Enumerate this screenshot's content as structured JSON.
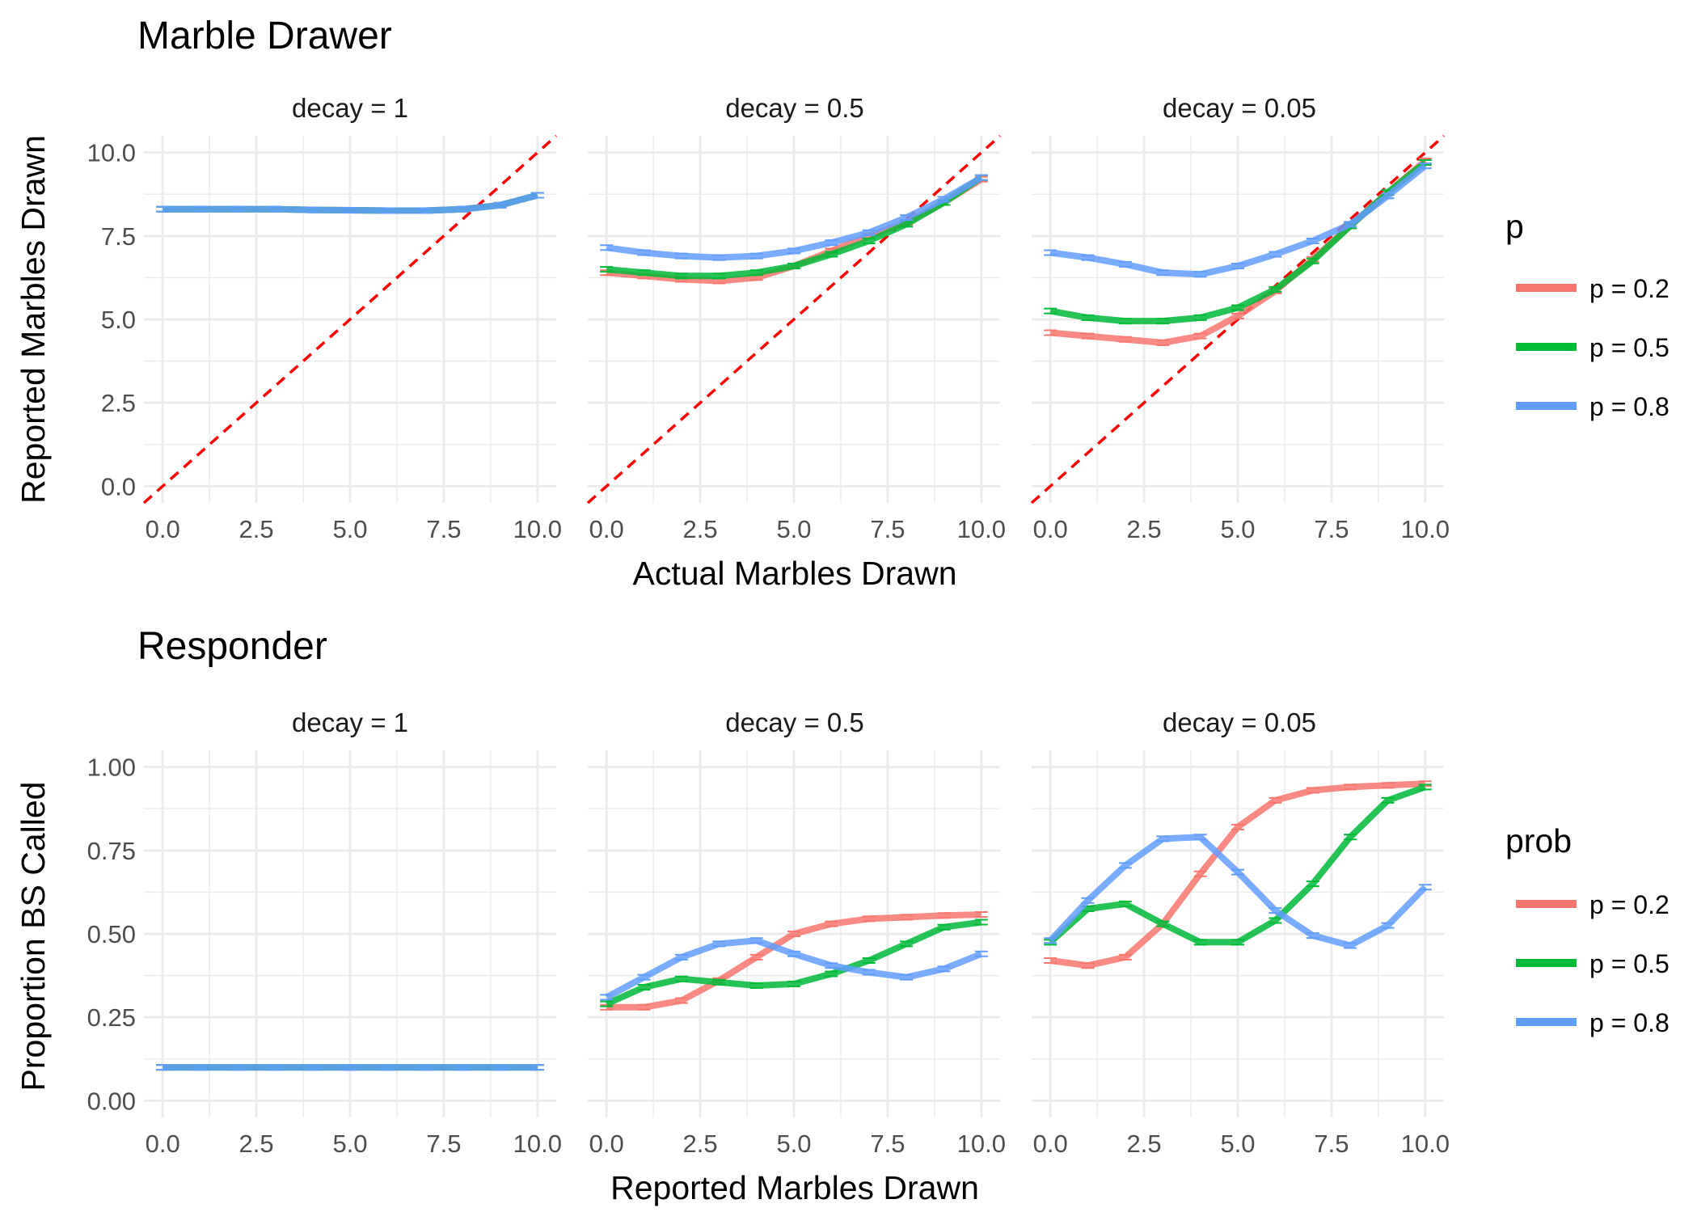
{
  "colors": {
    "p02": "#F8766D",
    "p05": "#00BA38",
    "p08": "#619CFF",
    "ref_line": "#FF0000",
    "grid": "#EBEBEB"
  },
  "chart_data": [
    {
      "type": "line",
      "title": "Marble Drawer",
      "xlabel": "Actual Marbles Drawn",
      "ylabel": "Reported Marbles Drawn",
      "xlim": [
        -0.5,
        10.5
      ],
      "ylim": [
        -0.5,
        10.5
      ],
      "xticks": [
        0,
        2.5,
        5,
        7.5,
        10
      ],
      "xtick_labels": [
        "0.0",
        "2.5",
        "5.0",
        "7.5",
        "10.0"
      ],
      "yticks": [
        0,
        2.5,
        5,
        7.5,
        10
      ],
      "ytick_labels": [
        "0.0",
        "2.5",
        "5.0",
        "7.5",
        "10.0"
      ],
      "grid": true,
      "reference_line": "y = x (dashed red)",
      "legend": {
        "title": "p",
        "placement": "right",
        "entries": [
          "p = 0.2",
          "p = 0.5",
          "p = 0.8"
        ]
      },
      "x": [
        0,
        1,
        2,
        3,
        4,
        5,
        6,
        7,
        8,
        9,
        10
      ],
      "facets": [
        {
          "label": "decay = 1",
          "series": [
            {
              "name": "p = 0.2",
              "values": [
                8.3,
                8.3,
                8.3,
                8.3,
                8.28,
                8.27,
                8.26,
                8.26,
                8.3,
                8.42,
                8.72
              ]
            },
            {
              "name": "p = 0.5",
              "values": [
                8.3,
                8.3,
                8.3,
                8.3,
                8.28,
                8.27,
                8.26,
                8.26,
                8.3,
                8.42,
                8.72
              ]
            },
            {
              "name": "p = 0.8",
              "values": [
                8.3,
                8.3,
                8.3,
                8.3,
                8.28,
                8.27,
                8.26,
                8.26,
                8.3,
                8.42,
                8.72
              ]
            }
          ]
        },
        {
          "label": "decay = 0.5",
          "series": [
            {
              "name": "p = 0.2",
              "values": [
                6.4,
                6.3,
                6.2,
                6.15,
                6.25,
                6.6,
                7.05,
                7.5,
                7.9,
                8.5,
                9.2
              ]
            },
            {
              "name": "p = 0.5",
              "values": [
                6.5,
                6.4,
                6.3,
                6.3,
                6.4,
                6.6,
                6.95,
                7.35,
                7.85,
                8.5,
                9.25
              ]
            },
            {
              "name": "p = 0.8",
              "values": [
                7.15,
                7.0,
                6.9,
                6.85,
                6.9,
                7.05,
                7.3,
                7.6,
                8.05,
                8.6,
                9.25
              ]
            }
          ]
        },
        {
          "label": "decay = 0.05",
          "series": [
            {
              "name": "p = 0.2",
              "values": [
                4.6,
                4.5,
                4.4,
                4.3,
                4.5,
                5.1,
                5.85,
                6.8,
                7.8,
                8.8,
                9.75
              ]
            },
            {
              "name": "p = 0.5",
              "values": [
                5.25,
                5.05,
                4.95,
                4.95,
                5.05,
                5.35,
                5.9,
                6.75,
                7.8,
                8.8,
                9.7
              ]
            },
            {
              "name": "p = 0.8",
              "values": [
                7.0,
                6.85,
                6.65,
                6.4,
                6.35,
                6.6,
                6.95,
                7.35,
                7.85,
                8.7,
                9.6
              ]
            }
          ]
        }
      ]
    },
    {
      "type": "line",
      "title": "Responder",
      "xlabel": "Reported Marbles Drawn",
      "ylabel": "Proportion BS Called",
      "xlim": [
        -0.5,
        10.5
      ],
      "ylim": [
        -0.05,
        1.05
      ],
      "xticks": [
        0,
        2.5,
        5,
        7.5,
        10
      ],
      "xtick_labels": [
        "0.0",
        "2.5",
        "5.0",
        "7.5",
        "10.0"
      ],
      "yticks": [
        0,
        0.25,
        0.5,
        0.75,
        1
      ],
      "ytick_labels": [
        "0.00",
        "0.25",
        "0.50",
        "0.75",
        "1.00"
      ],
      "grid": true,
      "legend": {
        "title": "prob",
        "placement": "right",
        "entries": [
          "p = 0.2",
          "p = 0.5",
          "p = 0.8"
        ]
      },
      "x": [
        0,
        1,
        2,
        3,
        4,
        5,
        6,
        7,
        8,
        9,
        10
      ],
      "facets": [
        {
          "label": "decay = 1",
          "series": [
            {
              "name": "p = 0.2",
              "values": [
                0.1,
                0.1,
                0.1,
                0.1,
                0.1,
                0.1,
                0.1,
                0.1,
                0.1,
                0.1,
                0.1
              ]
            },
            {
              "name": "p = 0.5",
              "values": [
                0.1,
                0.1,
                0.1,
                0.1,
                0.1,
                0.1,
                0.1,
                0.1,
                0.1,
                0.1,
                0.1
              ]
            },
            {
              "name": "p = 0.8",
              "values": [
                0.1,
                0.1,
                0.1,
                0.1,
                0.1,
                0.1,
                0.1,
                0.1,
                0.1,
                0.1,
                0.1
              ]
            }
          ]
        },
        {
          "label": "decay = 0.5",
          "series": [
            {
              "name": "p = 0.2",
              "values": [
                0.28,
                0.28,
                0.3,
                0.36,
                0.43,
                0.5,
                0.53,
                0.545,
                0.55,
                0.555,
                0.558
              ]
            },
            {
              "name": "p = 0.5",
              "values": [
                0.29,
                0.34,
                0.365,
                0.355,
                0.345,
                0.35,
                0.38,
                0.42,
                0.47,
                0.52,
                0.535
              ]
            },
            {
              "name": "p = 0.8",
              "values": [
                0.31,
                0.37,
                0.43,
                0.47,
                0.48,
                0.44,
                0.405,
                0.385,
                0.37,
                0.395,
                0.44
              ]
            }
          ]
        },
        {
          "label": "decay = 0.05",
          "series": [
            {
              "name": "p = 0.2",
              "values": [
                0.42,
                0.405,
                0.43,
                0.53,
                0.68,
                0.82,
                0.9,
                0.93,
                0.94,
                0.945,
                0.95
              ]
            },
            {
              "name": "p = 0.5",
              "values": [
                0.475,
                0.575,
                0.59,
                0.53,
                0.475,
                0.475,
                0.54,
                0.65,
                0.79,
                0.9,
                0.94
              ]
            },
            {
              "name": "p = 0.8",
              "values": [
                0.48,
                0.6,
                0.705,
                0.785,
                0.79,
                0.685,
                0.57,
                0.495,
                0.465,
                0.525,
                0.64
              ]
            }
          ]
        }
      ]
    }
  ]
}
